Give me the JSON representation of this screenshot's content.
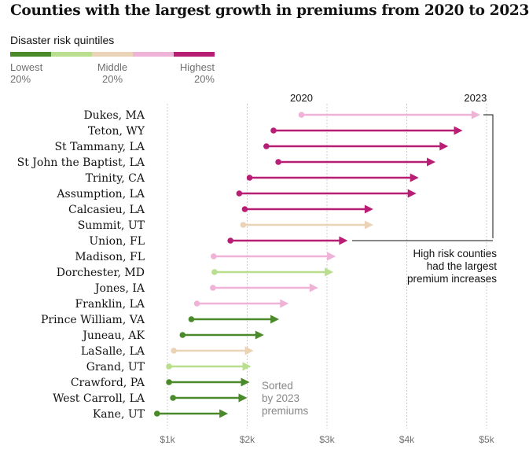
{
  "title": "Counties with the largest growth in premiums from 2020 to 2023",
  "legend": {
    "title": "Disaster risk quintiles",
    "colors": [
      "#4b8a2a",
      "#b8de8e",
      "#ead3b6",
      "#f0b3d8",
      "#b81f74"
    ],
    "labels": [
      {
        "line1": "Lowest",
        "line2": "20%"
      },
      {
        "line1": "Middle",
        "line2": "20%"
      },
      {
        "line1": "Highest",
        "line2": "20%"
      }
    ]
  },
  "chart_data": {
    "type": "arrow",
    "title": "Counties with the largest growth in premiums from 2020 to 2023",
    "series_labels": [
      "2020",
      "2023"
    ],
    "xlim": [
      0.85,
      5.1
    ],
    "x_ticks": [
      {
        "value": 1,
        "label": "$1k"
      },
      {
        "value": 2,
        "label": "$2k"
      },
      {
        "value": 3,
        "label": "$3k"
      },
      {
        "value": 4,
        "label": "$4k"
      },
      {
        "value": 5,
        "label": "$5k"
      }
    ],
    "rows": [
      {
        "county": "Dukes, MA",
        "v2020": 2.68,
        "v2023": 4.92,
        "quintile": 4
      },
      {
        "county": "Teton, WY",
        "v2020": 2.33,
        "v2023": 4.7,
        "quintile": 5
      },
      {
        "county": "St Tammany, LA",
        "v2020": 2.24,
        "v2023": 4.52,
        "quintile": 5
      },
      {
        "county": "St John the Baptist, LA",
        "v2020": 2.39,
        "v2023": 4.36,
        "quintile": 5
      },
      {
        "county": "Trinity, CA",
        "v2020": 2.03,
        "v2023": 4.15,
        "quintile": 5
      },
      {
        "county": "Assumption, LA",
        "v2020": 1.9,
        "v2023": 4.12,
        "quintile": 5
      },
      {
        "county": "Calcasieu, LA",
        "v2020": 1.97,
        "v2023": 3.58,
        "quintile": 5
      },
      {
        "county": "Summit, UT",
        "v2020": 1.95,
        "v2023": 3.58,
        "quintile": 3
      },
      {
        "county": "Union, FL",
        "v2020": 1.79,
        "v2023": 3.26,
        "quintile": 5
      },
      {
        "county": "Madison, FL",
        "v2020": 1.58,
        "v2023": 3.11,
        "quintile": 4
      },
      {
        "county": "Dorchester, MD",
        "v2020": 1.59,
        "v2023": 3.08,
        "quintile": 2
      },
      {
        "county": "Jones, IA",
        "v2020": 1.57,
        "v2023": 2.89,
        "quintile": 4
      },
      {
        "county": "Franklin, LA",
        "v2020": 1.37,
        "v2023": 2.52,
        "quintile": 4
      },
      {
        "county": "Prince William, VA",
        "v2020": 1.3,
        "v2023": 2.4,
        "quintile": 1
      },
      {
        "county": "Juneau, AK",
        "v2020": 1.19,
        "v2023": 2.21,
        "quintile": 1
      },
      {
        "county": "LaSalle, LA",
        "v2020": 1.08,
        "v2023": 2.08,
        "quintile": 3
      },
      {
        "county": "Grand, UT",
        "v2020": 1.02,
        "v2023": 2.05,
        "quintile": 2
      },
      {
        "county": "Crawford, PA",
        "v2020": 1.02,
        "v2023": 2.03,
        "quintile": 1
      },
      {
        "county": "West Carroll, LA",
        "v2020": 1.07,
        "v2023": 2.0,
        "quintile": 1
      },
      {
        "county": "Kane, UT",
        "v2020": 0.87,
        "v2023": 1.76,
        "quintile": 1
      }
    ],
    "annotations": {
      "high_risk": [
        "High risk counties",
        "had the largest",
        "premium increases"
      ],
      "sorted": [
        "Sorted",
        "by 2023",
        "premiums"
      ]
    },
    "grid": true
  }
}
